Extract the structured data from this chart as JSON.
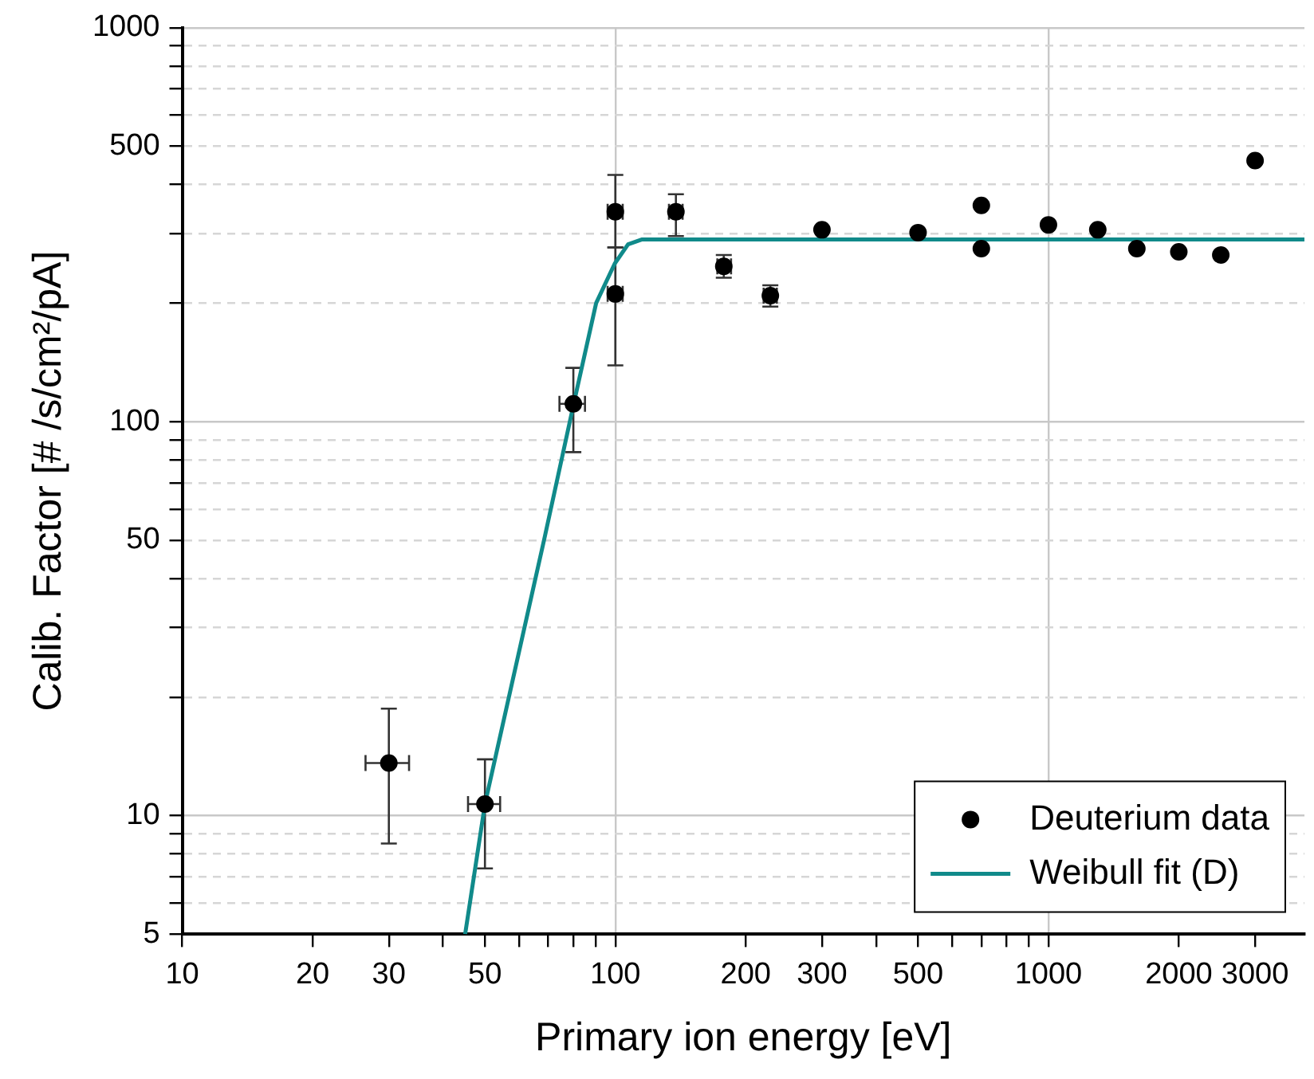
{
  "chart_data": {
    "type": "scatter",
    "xlabel": "Primary ion energy [eV]",
    "ylabel": "Calib. Factor [# /s/cm²/pA]",
    "log": "xy",
    "grid": true,
    "legend": "bottom right",
    "marker": "circle",
    "xlim": [
      10,
      3900
    ],
    "ylim": [
      5,
      1000
    ],
    "xticks": [
      10,
      20,
      30,
      {
        "value": 40,
        "label": null
      },
      50,
      {
        "value": 60,
        "label": null
      },
      {
        "value": 70,
        "label": null
      },
      {
        "value": 80,
        "label": null
      },
      {
        "value": 90,
        "label": null
      },
      100,
      200,
      300,
      {
        "value": 400,
        "label": null
      },
      500,
      {
        "value": 600,
        "label": null
      },
      {
        "value": 700,
        "label": null
      },
      {
        "value": 800,
        "label": null
      },
      {
        "value": 900,
        "label": null
      },
      1000,
      2000,
      3000
    ],
    "yticks": [
      5,
      {
        "value": 6,
        "label": null
      },
      {
        "value": 7,
        "label": null
      },
      {
        "value": 8,
        "label": null
      },
      {
        "value": 9,
        "label": null
      },
      10,
      {
        "value": 20,
        "label": null
      },
      {
        "value": 30,
        "label": null
      },
      {
        "value": 40,
        "label": null
      },
      50,
      {
        "value": 60,
        "label": null
      },
      {
        "value": 70,
        "label": null
      },
      {
        "value": 80,
        "label": null
      },
      {
        "value": 90,
        "label": null
      },
      100,
      {
        "value": 200,
        "label": null
      },
      {
        "value": 300,
        "label": null
      },
      {
        "value": 400,
        "label": null
      },
      500,
      {
        "value": 600,
        "label": null
      },
      {
        "value": 700,
        "label": null
      },
      {
        "value": 800,
        "label": null
      },
      {
        "value": 900,
        "label": null
      },
      1000
    ],
    "series": [
      {
        "name": "Deuterium data",
        "type": "scatter",
        "color": "#000000",
        "x": [
          30,
          50,
          80,
          100,
          100,
          138,
          178,
          228,
          300,
          500,
          700,
          700,
          1000,
          1300,
          1600,
          2000,
          2500,
          3000
        ],
        "values": [
          13.6,
          10.7,
          111,
          341,
          211,
          341,
          248,
          209,
          307,
          302,
          354,
          275,
          316,
          307,
          275,
          270,
          265,
          460
        ],
        "errors": [
          [
            8.5,
            18.7
          ],
          [
            7.35,
            13.9
          ],
          [
            83.7,
            137
          ],
          [
            277,
            423
          ],
          [
            139,
            277
          ],
          [
            296,
            378
          ],
          [
            232,
            265
          ],
          [
            196,
            222
          ],
          null,
          null,
          null,
          null,
          null,
          null,
          null,
          null,
          null,
          null
        ],
        "xerrors": [
          [
            26.5,
            33.4
          ],
          [
            45.7,
            54.2
          ],
          [
            74.3,
            85.1
          ],
          [
            96,
            104
          ],
          [
            96,
            104
          ],
          [
            133,
            143
          ],
          [
            172,
            185
          ],
          [
            220,
            236
          ],
          null,
          null,
          null,
          null,
          null,
          null,
          null,
          null,
          null,
          null
        ]
      },
      {
        "name": "Weibull fit (D)",
        "type": "line",
        "color": "#108a8a",
        "marker": "none",
        "x": [
          45,
          50,
          68.6,
          80,
          90.3,
          99.7,
          107,
          115,
          3900
        ],
        "values": [
          5,
          10.7,
          50.6,
          110,
          200,
          252,
          282,
          290,
          290
        ]
      }
    ]
  }
}
